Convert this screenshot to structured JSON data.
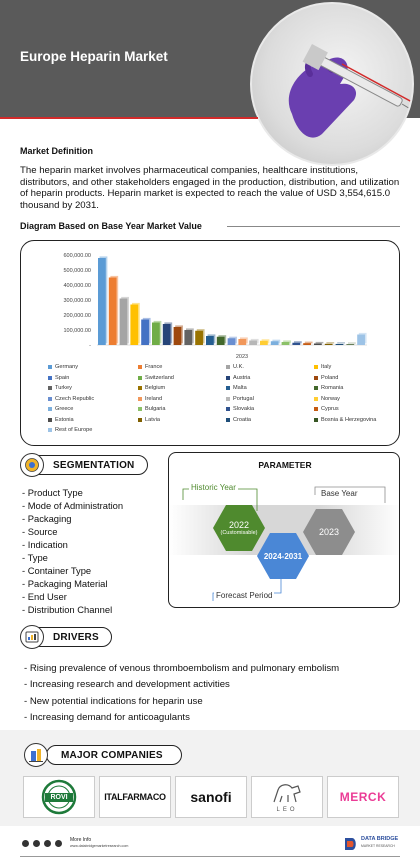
{
  "header": {
    "title": "Europe Heparin Market"
  },
  "definition": {
    "heading": "Market Definition",
    "text": "The heparin market involves pharmaceutical companies, healthcare institutions, distributors, and other stakeholders engaged in the production, distribution, and utilization of heparin products. Heparin market is expected to reach the value of USD 3,554,615.0  thousand by 2031."
  },
  "diagram": {
    "title": "Diagram Based on Base Year Market Value"
  },
  "chart_data": {
    "type": "bar",
    "x_label": "2023",
    "ylim": [
      0,
      600000
    ],
    "y_ticks": [
      "600,000.00",
      "500,000.00",
      "400,000.00",
      "300,000.00",
      "200,000.00",
      "100,000.00",
      "-"
    ],
    "categories": [
      "Germany",
      "France",
      "U.K.",
      "Italy",
      "Spain",
      "Switzerland",
      "Austria",
      "Poland",
      "Turkey",
      "Belgium",
      "Malta",
      "Romania",
      "Czech Republic",
      "Ireland",
      "Portugal",
      "Norway",
      "Greece",
      "Bulgaria",
      "Slovakia",
      "Cyprus",
      "Estonia",
      "Latvia",
      "Croatia",
      "Bosnia & Herzegovina",
      "Rest of Europe"
    ],
    "values": [
      580000,
      450000,
      310000,
      270000,
      170000,
      150000,
      140000,
      120000,
      100000,
      95000,
      60000,
      55000,
      45000,
      40000,
      30000,
      28000,
      25000,
      20000,
      15000,
      12000,
      10000,
      8000,
      7000,
      5000,
      70000
    ],
    "colors": [
      "#5b9bd5",
      "#ed7d31",
      "#a5a5a5",
      "#ffc000",
      "#4472c4",
      "#70ad47",
      "#264478",
      "#9e480e",
      "#636363",
      "#997300",
      "#255e91",
      "#43682b",
      "#698ed0",
      "#f1975a",
      "#b7b7b7",
      "#ffcd33",
      "#7cafdd",
      "#8cc168",
      "#2f528f",
      "#c55a11",
      "#4d4d4d",
      "#806000",
      "#1f4e79",
      "#375623",
      "#9dc3e6"
    ],
    "legend_placement": "bottom"
  },
  "segmentation": {
    "label": "SEGMENTATION",
    "items": [
      "Product Type",
      "Mode of Administration",
      "Packaging",
      "Source",
      "Indication",
      "Type",
      "Container Type",
      "Packaging Material",
      "End User",
      "Distribution Channel"
    ]
  },
  "parameter": {
    "title": "PARAMETER",
    "historic_label": "Historic Year",
    "base_label": "Base Year",
    "forecast_label": "Forecast Period",
    "historic_year": "2022",
    "historic_sub": "(Customisable)",
    "forecast_years": "2024-2031",
    "base_year": "2023",
    "colors": {
      "historic": "#4f8a2e",
      "forecast": "#4a87d6",
      "base": "#8d8d8d"
    }
  },
  "drivers": {
    "label": "DRIVERS",
    "items": [
      "Rising prevalence of venous thromboembolism and pulmonary embolism",
      "Increasing research and development activities",
      "New potential indications for heparin use",
      "Increasing demand for anticoagulants"
    ]
  },
  "companies": {
    "label": "MAJOR COMPANIES",
    "logos": [
      "ROVI",
      "ITALFARMACO",
      "sanofi",
      "LEO",
      "MERCK"
    ]
  },
  "footer": {
    "more_info": "More Info",
    "url": "www.databridgemarketresearch.com",
    "brand": "DATA BRIDGE",
    "brand_sub": "MARKET RESEARCH"
  }
}
